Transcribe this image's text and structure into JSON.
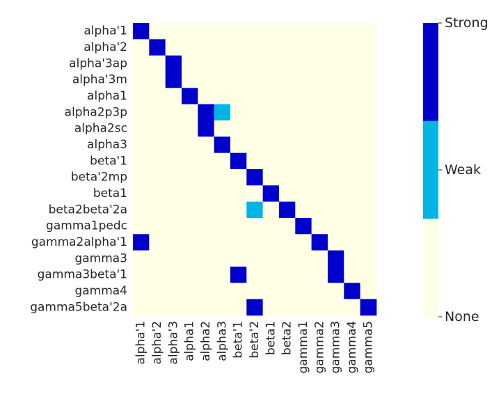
{
  "chart_data": {
    "type": "heatmap",
    "title": "",
    "xlabel": "",
    "ylabel": "",
    "rows": [
      "alpha'1",
      "alpha'2",
      "alpha'3ap",
      "alpha'3m",
      "alpha1",
      "alpha2p3p",
      "alpha2sc",
      "alpha3",
      "beta'1",
      "beta'2mp",
      "beta1",
      "beta2beta'2a",
      "gamma1pedc",
      "gamma2alpha'1",
      "gamma3",
      "gamma3beta'1",
      "gamma4",
      "gamma5beta'2a"
    ],
    "columns": [
      "alpha'1",
      "alpha'2",
      "alpha'3",
      "alpha1",
      "alpha2",
      "alpha3",
      "beta'1",
      "beta'2",
      "beta1",
      "beta2",
      "gamma1",
      "gamma2",
      "gamma3",
      "gamma4",
      "gamma5"
    ],
    "values": [
      [
        2,
        0,
        0,
        0,
        0,
        0,
        0,
        0,
        0,
        0,
        0,
        0,
        0,
        0,
        0
      ],
      [
        0,
        2,
        0,
        0,
        0,
        0,
        0,
        0,
        0,
        0,
        0,
        0,
        0,
        0,
        0
      ],
      [
        0,
        0,
        2,
        0,
        0,
        0,
        0,
        0,
        0,
        0,
        0,
        0,
        0,
        0,
        0
      ],
      [
        0,
        0,
        2,
        0,
        0,
        0,
        0,
        0,
        0,
        0,
        0,
        0,
        0,
        0,
        0
      ],
      [
        0,
        0,
        0,
        2,
        0,
        0,
        0,
        0,
        0,
        0,
        0,
        0,
        0,
        0,
        0
      ],
      [
        0,
        0,
        0,
        0,
        2,
        1,
        0,
        0,
        0,
        0,
        0,
        0,
        0,
        0,
        0
      ],
      [
        0,
        0,
        0,
        0,
        2,
        0,
        0,
        0,
        0,
        0,
        0,
        0,
        0,
        0,
        0
      ],
      [
        0,
        0,
        0,
        0,
        0,
        2,
        0,
        0,
        0,
        0,
        0,
        0,
        0,
        0,
        0
      ],
      [
        0,
        0,
        0,
        0,
        0,
        0,
        2,
        0,
        0,
        0,
        0,
        0,
        0,
        0,
        0
      ],
      [
        0,
        0,
        0,
        0,
        0,
        0,
        0,
        2,
        0,
        0,
        0,
        0,
        0,
        0,
        0
      ],
      [
        0,
        0,
        0,
        0,
        0,
        0,
        0,
        0,
        2,
        0,
        0,
        0,
        0,
        0,
        0
      ],
      [
        0,
        0,
        0,
        0,
        0,
        0,
        0,
        1,
        0,
        2,
        0,
        0,
        0,
        0,
        0
      ],
      [
        0,
        0,
        0,
        0,
        0,
        0,
        0,
        0,
        0,
        0,
        2,
        0,
        0,
        0,
        0
      ],
      [
        2,
        0,
        0,
        0,
        0,
        0,
        0,
        0,
        0,
        0,
        0,
        2,
        0,
        0,
        0
      ],
      [
        0,
        0,
        0,
        0,
        0,
        0,
        0,
        0,
        0,
        0,
        0,
        0,
        2,
        0,
        0
      ],
      [
        0,
        0,
        0,
        0,
        0,
        0,
        2,
        0,
        0,
        0,
        0,
        0,
        2,
        0,
        0
      ],
      [
        0,
        0,
        0,
        0,
        0,
        0,
        0,
        0,
        0,
        0,
        0,
        0,
        0,
        2,
        0
      ],
      [
        0,
        0,
        0,
        0,
        0,
        0,
        0,
        2,
        0,
        0,
        0,
        0,
        0,
        0,
        2
      ]
    ],
    "levels": [
      {
        "value": 0,
        "label": "None",
        "color": "#FFFFE5"
      },
      {
        "value": 1,
        "label": "Weak",
        "color": "#00B4E6"
      },
      {
        "value": 2,
        "label": "Strong",
        "color": "#0000CD"
      }
    ],
    "colorbar_ticks": [
      "Strong",
      "Weak",
      "None"
    ],
    "legend_position": "right"
  }
}
